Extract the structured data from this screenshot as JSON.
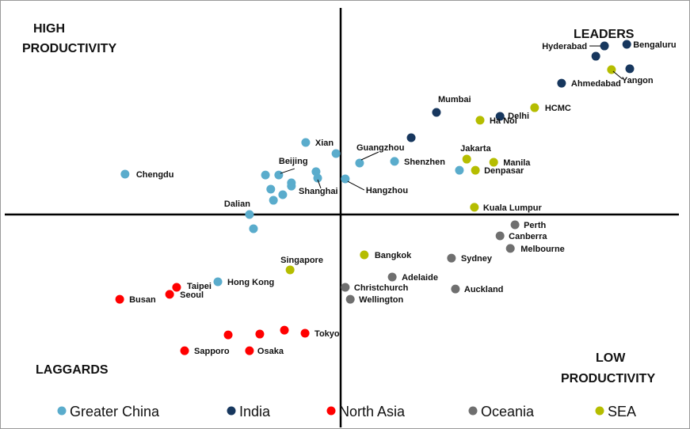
{
  "chart_data": {
    "type": "scatter",
    "title": "",
    "xlabel": "",
    "ylabel": "",
    "xlim": [
      -102,
      102
    ],
    "ylim": [
      -88,
      100
    ],
    "grid": false,
    "legend_placement": "bottom",
    "quadrant_labels": {
      "top_left": [
        "HIGH",
        "PRODUCTIVITY"
      ],
      "top_right": [
        "LEADERS"
      ],
      "bottom_left": [
        "LAGGARDS"
      ],
      "bottom_right": [
        "LOW",
        "PRODUCTIVITY"
      ]
    },
    "series": [
      {
        "name": "Greater China",
        "color": "#5aaccc",
        "points": [
          {
            "label": "Chengdu",
            "x": -64.8,
            "y": 19.6
          },
          {
            "label": "Xian",
            "x": -10.5,
            "y": 35.0
          },
          {
            "label": "",
            "x": -1.4,
            "y": 29.6
          },
          {
            "label": "Guangzhou",
            "x": 5.7,
            "y": 25.0
          },
          {
            "label": "Shenzhen",
            "x": 16.2,
            "y": 25.8
          },
          {
            "label": "Beijing",
            "x": -18.6,
            "y": 19.2
          },
          {
            "label": "",
            "x": -22.6,
            "y": 19.2
          },
          {
            "label": "",
            "x": -7.4,
            "y": 20.8
          },
          {
            "label": "Shanghai",
            "x": -6.9,
            "y": 17.7
          },
          {
            "label": "",
            "x": -14.8,
            "y": 15.4
          },
          {
            "label": "",
            "x": -14.8,
            "y": 13.8
          },
          {
            "label": "",
            "x": -21.0,
            "y": 12.3
          },
          {
            "label": "",
            "x": -17.4,
            "y": 9.6
          },
          {
            "label": "",
            "x": -20.2,
            "y": 6.9
          },
          {
            "label": "Hangzhou",
            "x": 1.4,
            "y": 17.3
          },
          {
            "label": "Dalian",
            "x": -27.4,
            "y": 0.0
          },
          {
            "label": "",
            "x": -26.2,
            "y": -6.9
          },
          {
            "label": "Hong Kong",
            "x": -36.9,
            "y": -32.7
          },
          {
            "label": "",
            "x": 35.7,
            "y": 21.5
          }
        ]
      },
      {
        "name": "India",
        "color": "#17375e",
        "points": [
          {
            "label": "Bengaluru",
            "x": 86.0,
            "y": 82.7
          },
          {
            "label": "Hyderabad",
            "x": 79.3,
            "y": 81.9
          },
          {
            "label": "",
            "x": 76.7,
            "y": 76.9
          },
          {
            "label": "",
            "x": 86.9,
            "y": 70.8
          },
          {
            "label": "Ahmedabad",
            "x": 66.4,
            "y": 63.8
          },
          {
            "label": "Mumbai",
            "x": 28.8,
            "y": 49.6
          },
          {
            "label": "Delhi",
            "x": 47.9,
            "y": 47.7
          },
          {
            "label": "",
            "x": 21.2,
            "y": 37.3
          }
        ]
      },
      {
        "name": "North Asia",
        "color": "#ff0000",
        "points": [
          {
            "label": "Taipei",
            "x": -49.3,
            "y": -35.4
          },
          {
            "label": "Seoul",
            "x": -51.4,
            "y": -38.8
          },
          {
            "label": "Busan",
            "x": -66.4,
            "y": -41.2
          },
          {
            "label": "",
            "x": -33.8,
            "y": -58.5
          },
          {
            "label": "",
            "x": -24.3,
            "y": -58.1
          },
          {
            "label": "",
            "x": -16.9,
            "y": -56.2
          },
          {
            "label": "Tokyo",
            "x": -10.7,
            "y": -57.7
          },
          {
            "label": "Sapporo",
            "x": -46.9,
            "y": -66.2
          },
          {
            "label": "Osaka",
            "x": -27.4,
            "y": -66.2
          }
        ]
      },
      {
        "name": "Oceania",
        "color": "#6f6f6f",
        "points": [
          {
            "label": "Perth",
            "x": 52.4,
            "y": -5.0
          },
          {
            "label": "Canberra",
            "x": 47.9,
            "y": -10.4
          },
          {
            "label": "Melbourne",
            "x": 51.0,
            "y": -16.5
          },
          {
            "label": "Sydney",
            "x": 33.3,
            "y": -21.2
          },
          {
            "label": "Adelaide",
            "x": 15.5,
            "y": -30.4
          },
          {
            "label": "Christchurch",
            "x": 1.4,
            "y": -35.4
          },
          {
            "label": "Wellington",
            "x": 2.9,
            "y": -41.2
          },
          {
            "label": "Auckland",
            "x": 34.5,
            "y": -36.2
          }
        ]
      },
      {
        "name": "SEA",
        "color": "#b5bd00",
        "points": [
          {
            "label": "Yangon",
            "x": 81.4,
            "y": 70.4
          },
          {
            "label": "HCMC",
            "x": 58.3,
            "y": 51.9
          },
          {
            "label": "Ha Noi",
            "x": 41.9,
            "y": 45.8
          },
          {
            "label": "Jakarta",
            "x": 37.9,
            "y": 26.9
          },
          {
            "label": "Manila",
            "x": 46.0,
            "y": 25.4
          },
          {
            "label": "Denpasar",
            "x": 40.5,
            "y": 21.5
          },
          {
            "label": "Kuala Lumpur",
            "x": 40.2,
            "y": 3.5
          },
          {
            "label": "Bangkok",
            "x": 7.1,
            "y": -19.6
          },
          {
            "label": "Singapore",
            "x": -15.2,
            "y": -26.9
          }
        ]
      }
    ]
  }
}
